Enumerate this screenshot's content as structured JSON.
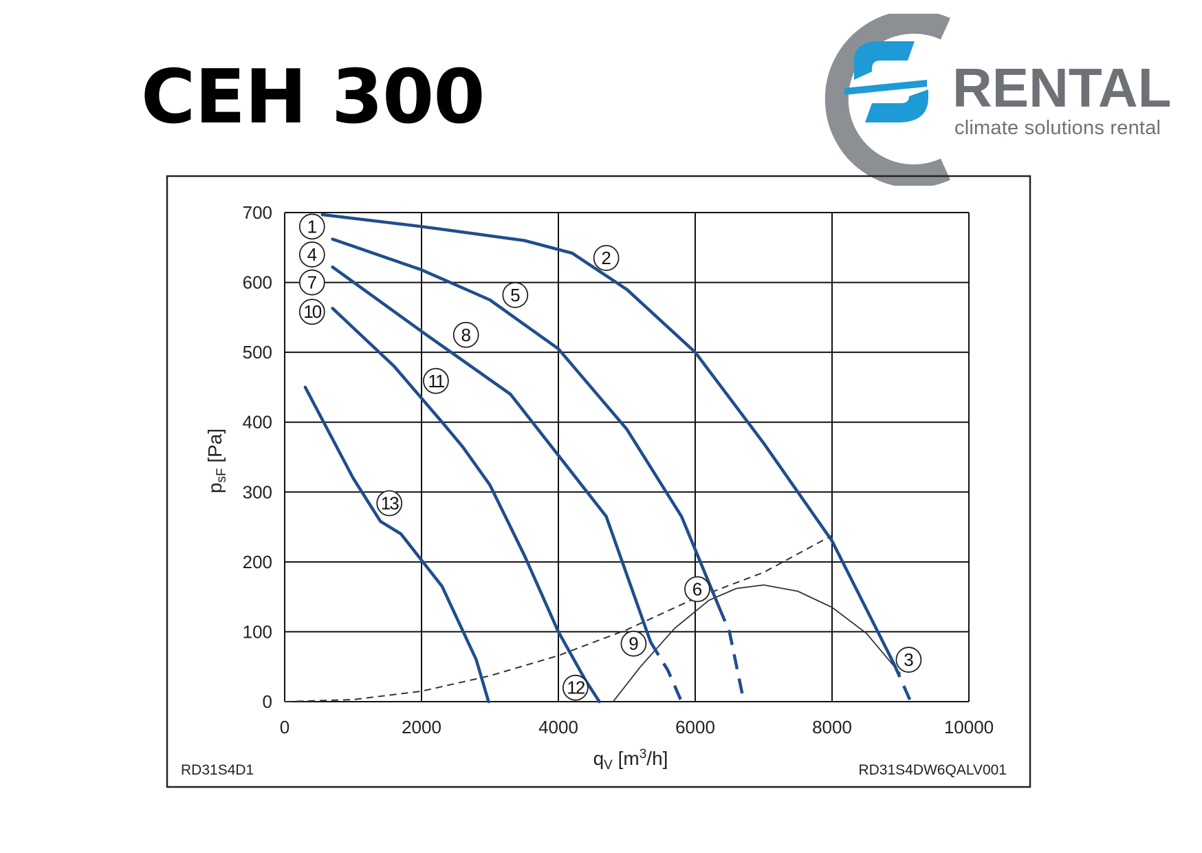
{
  "page": {
    "title": "CEH 300"
  },
  "logo": {
    "wordmark": "RENTAL",
    "tagline": "climate solutions rental",
    "ring_color": "#8c8f94",
    "mark_color": "#1e9ad6",
    "text_color": "#6e7277"
  },
  "chart_data": {
    "type": "line",
    "xlabel": "q_V [m³/h]",
    "ylabel": "p_sF [Pa]",
    "xlim": [
      0,
      10000
    ],
    "ylim": [
      0,
      700
    ],
    "xticks": [
      0,
      2000,
      4000,
      6000,
      8000,
      10000
    ],
    "yticks": [
      0,
      100,
      200,
      300,
      400,
      500,
      600,
      700
    ],
    "xtick_labels": [
      "0",
      "2000",
      "4000",
      "6000",
      "8000",
      "10000"
    ],
    "ytick_labels": [
      "0",
      "100",
      "200",
      "300",
      "400",
      "500",
      "600",
      "700"
    ],
    "grid": true,
    "corner_left": "RD31S4D1",
    "corner_right": "RD31S4DW6QALV001",
    "colors": {
      "curve": "#1f4e8c",
      "aux": "#333333",
      "grid": "#111111"
    },
    "series": [
      {
        "points": [
          [
            550,
            697
          ],
          [
            2000,
            680
          ],
          [
            3500,
            660
          ],
          [
            4200,
            642
          ],
          [
            5000,
            590
          ],
          [
            6000,
            500
          ],
          [
            7000,
            370
          ],
          [
            8000,
            230
          ],
          [
            8900,
            55
          ]
        ],
        "dashed_tail": [
          [
            8900,
            55
          ],
          [
            9150,
            0
          ]
        ],
        "markers": [
          {
            "label": "1",
            "x": 400,
            "y": 680
          },
          {
            "label": "2",
            "x": 4700,
            "y": 635
          },
          {
            "label": "3",
            "x": 9120,
            "y": 60
          }
        ]
      },
      {
        "points": [
          [
            700,
            662
          ],
          [
            2000,
            618
          ],
          [
            3000,
            575
          ],
          [
            4000,
            505
          ],
          [
            5000,
            390
          ],
          [
            5800,
            265
          ],
          [
            6350,
            135
          ]
        ],
        "dashed_tail": [
          [
            6350,
            135
          ],
          [
            6500,
            100
          ],
          [
            6700,
            5
          ]
        ],
        "markers": [
          {
            "label": "4",
            "x": 400,
            "y": 640
          },
          {
            "label": "5",
            "x": 3370,
            "y": 582
          },
          {
            "label": "6",
            "x": 6030,
            "y": 161
          }
        ]
      },
      {
        "points": [
          [
            700,
            622
          ],
          [
            2000,
            530
          ],
          [
            3300,
            440
          ],
          [
            4100,
            340
          ],
          [
            4700,
            265
          ],
          [
            5350,
            85
          ]
        ],
        "dashed_tail": [
          [
            5350,
            85
          ],
          [
            5600,
            45
          ],
          [
            5800,
            0
          ]
        ],
        "markers": [
          {
            "label": "7",
            "x": 400,
            "y": 600
          },
          {
            "label": "8",
            "x": 2650,
            "y": 525
          },
          {
            "label": "9",
            "x": 5100,
            "y": 83
          }
        ]
      },
      {
        "points": [
          [
            700,
            563
          ],
          [
            1600,
            480
          ],
          [
            2300,
            400
          ],
          [
            2600,
            365
          ],
          [
            3000,
            310
          ],
          [
            3500,
            210
          ],
          [
            4000,
            100
          ],
          [
            4400,
            30
          ],
          [
            4600,
            0
          ]
        ],
        "markers": [
          {
            "label": "10",
            "x": 400,
            "y": 558
          },
          {
            "label": "11",
            "x": 2210,
            "y": 459
          },
          {
            "label": "12",
            "x": 4250,
            "y": 20
          }
        ]
      },
      {
        "points": [
          [
            300,
            450
          ],
          [
            1000,
            320
          ],
          [
            1400,
            258
          ],
          [
            1700,
            240
          ],
          [
            2300,
            165
          ],
          [
            2800,
            60
          ],
          [
            2980,
            0
          ]
        ],
        "markers": [
          {
            "label": "13",
            "x": 1530,
            "y": 284
          }
        ]
      }
    ],
    "system_curve": [
      [
        0,
        0
      ],
      [
        1000,
        3
      ],
      [
        2000,
        15
      ],
      [
        3000,
        37
      ],
      [
        4000,
        66
      ],
      [
        5000,
        103
      ],
      [
        6000,
        148
      ],
      [
        7000,
        185
      ],
      [
        8000,
        238
      ]
    ],
    "limit_curve": [
      [
        4800,
        0
      ],
      [
        5200,
        50
      ],
      [
        5700,
        105
      ],
      [
        6200,
        145
      ],
      [
        6600,
        162
      ],
      [
        7000,
        167
      ],
      [
        7500,
        158
      ],
      [
        8000,
        135
      ],
      [
        8500,
        98
      ],
      [
        9000,
        40
      ]
    ]
  }
}
